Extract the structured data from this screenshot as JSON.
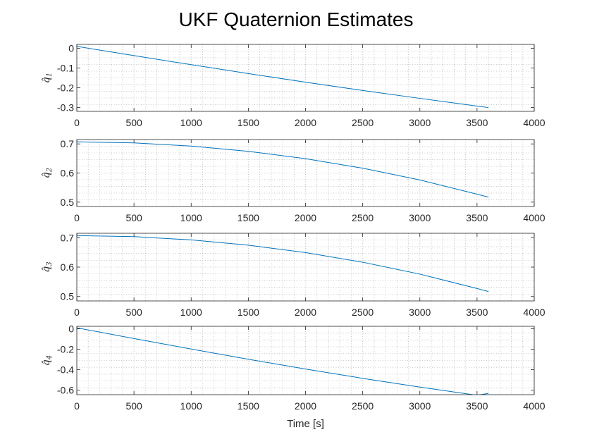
{
  "figure": {
    "title": "UKF Quaternion Estimates",
    "xlabel": "Time [s]"
  },
  "chart_data": [
    {
      "type": "line",
      "ylabel": "q̂1",
      "ylabel_base": "q̂",
      "ylabel_sub": "1",
      "xlabel": "",
      "xlim": [
        0,
        4000
      ],
      "ylim": [
        -0.32,
        0.02
      ],
      "xticks": [
        0,
        500,
        1000,
        1500,
        2000,
        2500,
        3000,
        3500,
        4000
      ],
      "yticks": [
        0,
        -0.1,
        -0.2,
        -0.3
      ],
      "ytick_labels": [
        "0",
        "-0.1",
        "-0.2",
        "-0.3"
      ],
      "grid": "on (minor dotted)",
      "color": "#0072BD",
      "series": [
        {
          "x": [
            0,
            500,
            1000,
            1500,
            2000,
            2500,
            3000,
            3500,
            3600
          ],
          "y": [
            0.01,
            -0.037,
            -0.083,
            -0.128,
            -0.172,
            -0.214,
            -0.254,
            -0.293,
            -0.301
          ]
        }
      ]
    },
    {
      "type": "line",
      "ylabel": "q̂2",
      "ylabel_base": "q̂",
      "ylabel_sub": "2",
      "xlabel": "",
      "xlim": [
        0,
        4000
      ],
      "ylim": [
        0.485,
        0.715
      ],
      "xticks": [
        0,
        500,
        1000,
        1500,
        2000,
        2500,
        3000,
        3500,
        4000
      ],
      "yticks": [
        0.7,
        0.6,
        0.5
      ],
      "ytick_labels": [
        "0.7",
        "0.6",
        "0.5"
      ],
      "grid": "on (minor dotted)",
      "color": "#0072BD",
      "series": [
        {
          "x": [
            0,
            500,
            1000,
            1500,
            2000,
            2500,
            3000,
            3500,
            3600
          ],
          "y": [
            0.7071,
            0.7035,
            0.6925,
            0.6745,
            0.6493,
            0.6166,
            0.5762,
            0.5273,
            0.517
          ]
        }
      ]
    },
    {
      "type": "line",
      "ylabel": "q̂3",
      "ylabel_base": "q̂",
      "ylabel_sub": "3",
      "xlabel": "",
      "xlim": [
        0,
        4000
      ],
      "ylim": [
        0.485,
        0.715
      ],
      "xticks": [
        0,
        500,
        1000,
        1500,
        2000,
        2500,
        3000,
        3500,
        4000
      ],
      "yticks": [
        0.7,
        0.6,
        0.5
      ],
      "ytick_labels": [
        "0.7",
        "0.6",
        "0.5"
      ],
      "grid": "on (minor dotted)",
      "color": "#0072BD",
      "series": [
        {
          "x": [
            0,
            500,
            1000,
            1500,
            2000,
            2500,
            3000,
            3500,
            3600
          ],
          "y": [
            0.7071,
            0.7035,
            0.6925,
            0.6745,
            0.6493,
            0.6166,
            0.5762,
            0.5273,
            0.517
          ]
        }
      ]
    },
    {
      "type": "line",
      "ylabel": "q̂4",
      "ylabel_base": "q̂",
      "ylabel_sub": "4",
      "xlabel": "Time [s]",
      "xlim": [
        0,
        4000
      ],
      "ylim": [
        -0.645,
        0.025
      ],
      "xticks": [
        0,
        500,
        1000,
        1500,
        2000,
        2500,
        3000,
        3500,
        4000
      ],
      "yticks": [
        0,
        -0.2,
        -0.4,
        -0.6
      ],
      "ytick_labels": [
        "0",
        "-0.2",
        "-0.4",
        "-0.6"
      ],
      "grid": "on (minor dotted)",
      "color": "#0072BD",
      "series": [
        {
          "x": [
            0,
            500,
            1000,
            1500,
            2000,
            2500,
            3000,
            3500,
            3600
          ],
          "y": [
            0.01,
            -0.095,
            -0.198,
            -0.298,
            -0.394,
            -0.485,
            -0.571,
            -0.651,
            -0.632
          ]
        }
      ]
    }
  ]
}
